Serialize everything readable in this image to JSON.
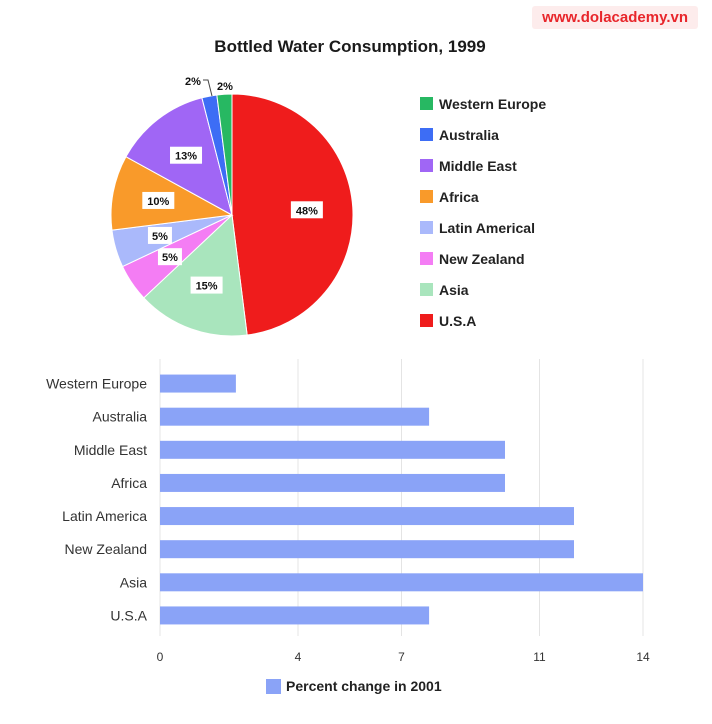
{
  "watermark": "www.dolacademy.vn",
  "chart_data": [
    {
      "type": "pie",
      "title": "Bottled Water Consumption, 1999",
      "legend_position": "right",
      "slices": [
        {
          "label": "U.S.A",
          "value": 48,
          "value_label": "48%",
          "color": "#ef1c1c"
        },
        {
          "label": "Asia",
          "value": 15,
          "value_label": "15%",
          "color": "#a9e5bd"
        },
        {
          "label": "New Zealand",
          "value": 5,
          "value_label": "5%",
          "color": "#f47df4"
        },
        {
          "label": "Latin Americal",
          "value": 5,
          "value_label": "5%",
          "color": "#aab9fb"
        },
        {
          "label": "Africa",
          "value": 10,
          "value_label": "10%",
          "color": "#f99a2a"
        },
        {
          "label": "Middle East",
          "value": 13,
          "value_label": "13%",
          "color": "#a066f5"
        },
        {
          "label": "Australia",
          "value": 2,
          "value_label": "2%",
          "color": "#3d6df5"
        },
        {
          "label": "Western Europe",
          "value": 2,
          "value_label": "2%",
          "color": "#27b862"
        }
      ],
      "legend": [
        {
          "label": "Western Europe",
          "color": "#27b862"
        },
        {
          "label": "Australia",
          "color": "#3d6df5"
        },
        {
          "label": "Middle East",
          "color": "#a066f5"
        },
        {
          "label": "Africa",
          "color": "#f99a2a"
        },
        {
          "label": "Latin Americal",
          "color": "#aab9fb"
        },
        {
          "label": "New Zealand",
          "color": "#f47df4"
        },
        {
          "label": "Asia",
          "color": "#a9e5bd"
        },
        {
          "label": "U.S.A",
          "color": "#ef1c1c"
        }
      ]
    },
    {
      "type": "bar",
      "orientation": "horizontal",
      "categories": [
        "Western Europe",
        "Australia",
        "Middle East",
        "Africa",
        "Latin America",
        "New Zealand",
        "Asia",
        "U.S.A"
      ],
      "series": [
        {
          "name": "Percent change in 2001",
          "values": [
            2.2,
            7.8,
            10,
            10,
            12,
            12,
            14,
            7.8
          ],
          "color": "#8aa3f7"
        }
      ],
      "xlim": [
        0,
        14
      ],
      "xticks": [
        0,
        4,
        7,
        11,
        14
      ],
      "grid": true,
      "legend_position": "bottom"
    }
  ]
}
